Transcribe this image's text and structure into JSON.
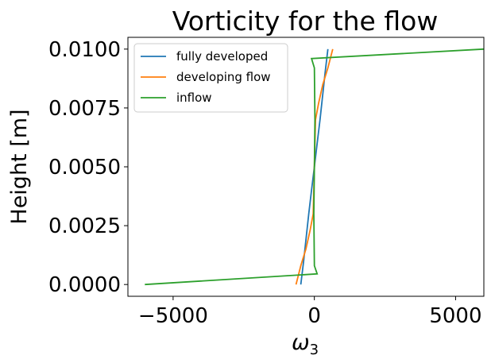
{
  "chart_data": {
    "type": "line",
    "title": "Vorticity for the flow",
    "xlabel": "ω",
    "xlabel_sub": "3",
    "ylabel": "Height [m]",
    "xlim": [
      -6600,
      6000
    ],
    "ylim": [
      -0.0005,
      0.0105
    ],
    "xticks": [
      -5000,
      0,
      5000
    ],
    "xtick_labels": [
      "−5000",
      "0",
      "5000"
    ],
    "yticks": [
      0.0,
      0.0025,
      0.005,
      0.0075,
      0.01
    ],
    "ytick_labels": [
      "0.0000",
      "0.0025",
      "0.0050",
      "0.0075",
      "0.0100"
    ],
    "grid": false,
    "legend_position": "top-left",
    "series": [
      {
        "name": "fully developed",
        "color": "#1f77b4",
        "points": [
          [
            -480,
            0.0
          ],
          [
            -380,
            0.001
          ],
          [
            -290,
            0.002
          ],
          [
            -200,
            0.003
          ],
          [
            -100,
            0.004
          ],
          [
            0,
            0.005
          ],
          [
            100,
            0.006
          ],
          [
            200,
            0.007
          ],
          [
            290,
            0.008
          ],
          [
            380,
            0.009
          ],
          [
            480,
            0.01
          ]
        ]
      },
      {
        "name": "developing flow",
        "color": "#ff7f0e",
        "points": [
          [
            -650,
            0.0
          ],
          [
            -480,
            0.0008
          ],
          [
            -300,
            0.0015
          ],
          [
            -150,
            0.0023
          ],
          [
            -40,
            0.003
          ],
          [
            0,
            0.005
          ],
          [
            40,
            0.007
          ],
          [
            150,
            0.0077
          ],
          [
            300,
            0.0085
          ],
          [
            480,
            0.0092
          ],
          [
            650,
            0.01
          ]
        ]
      },
      {
        "name": "inflow",
        "color": "#2ca02c",
        "points": [
          [
            -6000,
            0.0
          ],
          [
            100,
            0.00045
          ],
          [
            0,
            0.0008
          ],
          [
            -20,
            0.003
          ],
          [
            0,
            0.005
          ],
          [
            20,
            0.007
          ],
          [
            0,
            0.0092
          ],
          [
            -100,
            0.0096
          ],
          [
            6000,
            0.01
          ]
        ]
      }
    ]
  }
}
